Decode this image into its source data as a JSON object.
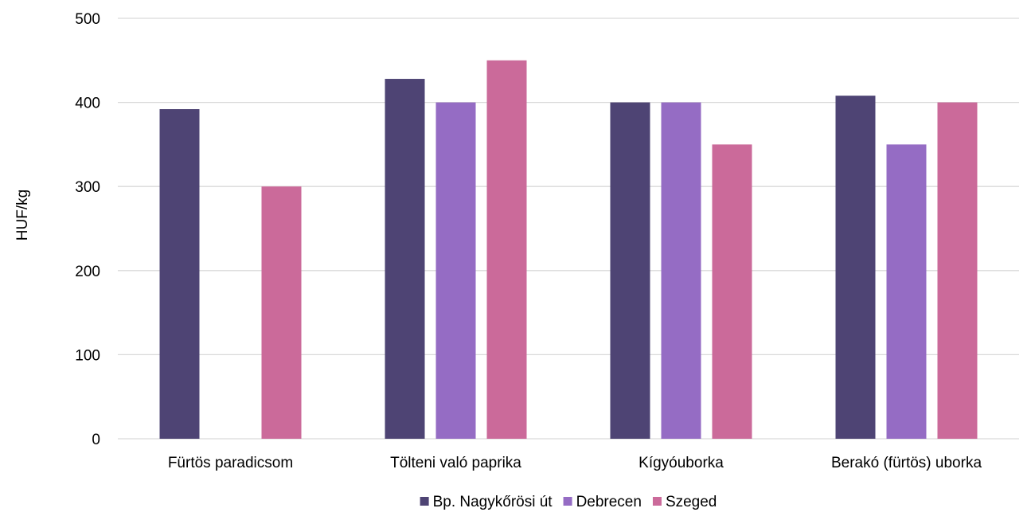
{
  "chart_data": {
    "type": "bar",
    "title": "",
    "xlabel": "",
    "ylabel": "HUF/kg",
    "ylim": [
      0,
      500
    ],
    "yticks": [
      0,
      100,
      200,
      300,
      400,
      500
    ],
    "grid": true,
    "legend_position": "bottom",
    "categories": [
      "Fürtös paradicsom",
      "Tölteni való paprika",
      "Kígyóuborka",
      "Berakó (fürtös) uborka"
    ],
    "series": [
      {
        "name": "Bp. Nagykőrösi út",
        "color": "#4e4474",
        "values": [
          392,
          428,
          400,
          408
        ]
      },
      {
        "name": "Debrecen",
        "color": "#956cc4",
        "values": [
          null,
          400,
          400,
          350
        ]
      },
      {
        "name": "Szeged",
        "color": "#cb6a9a",
        "values": [
          300,
          450,
          350,
          400
        ]
      }
    ]
  }
}
